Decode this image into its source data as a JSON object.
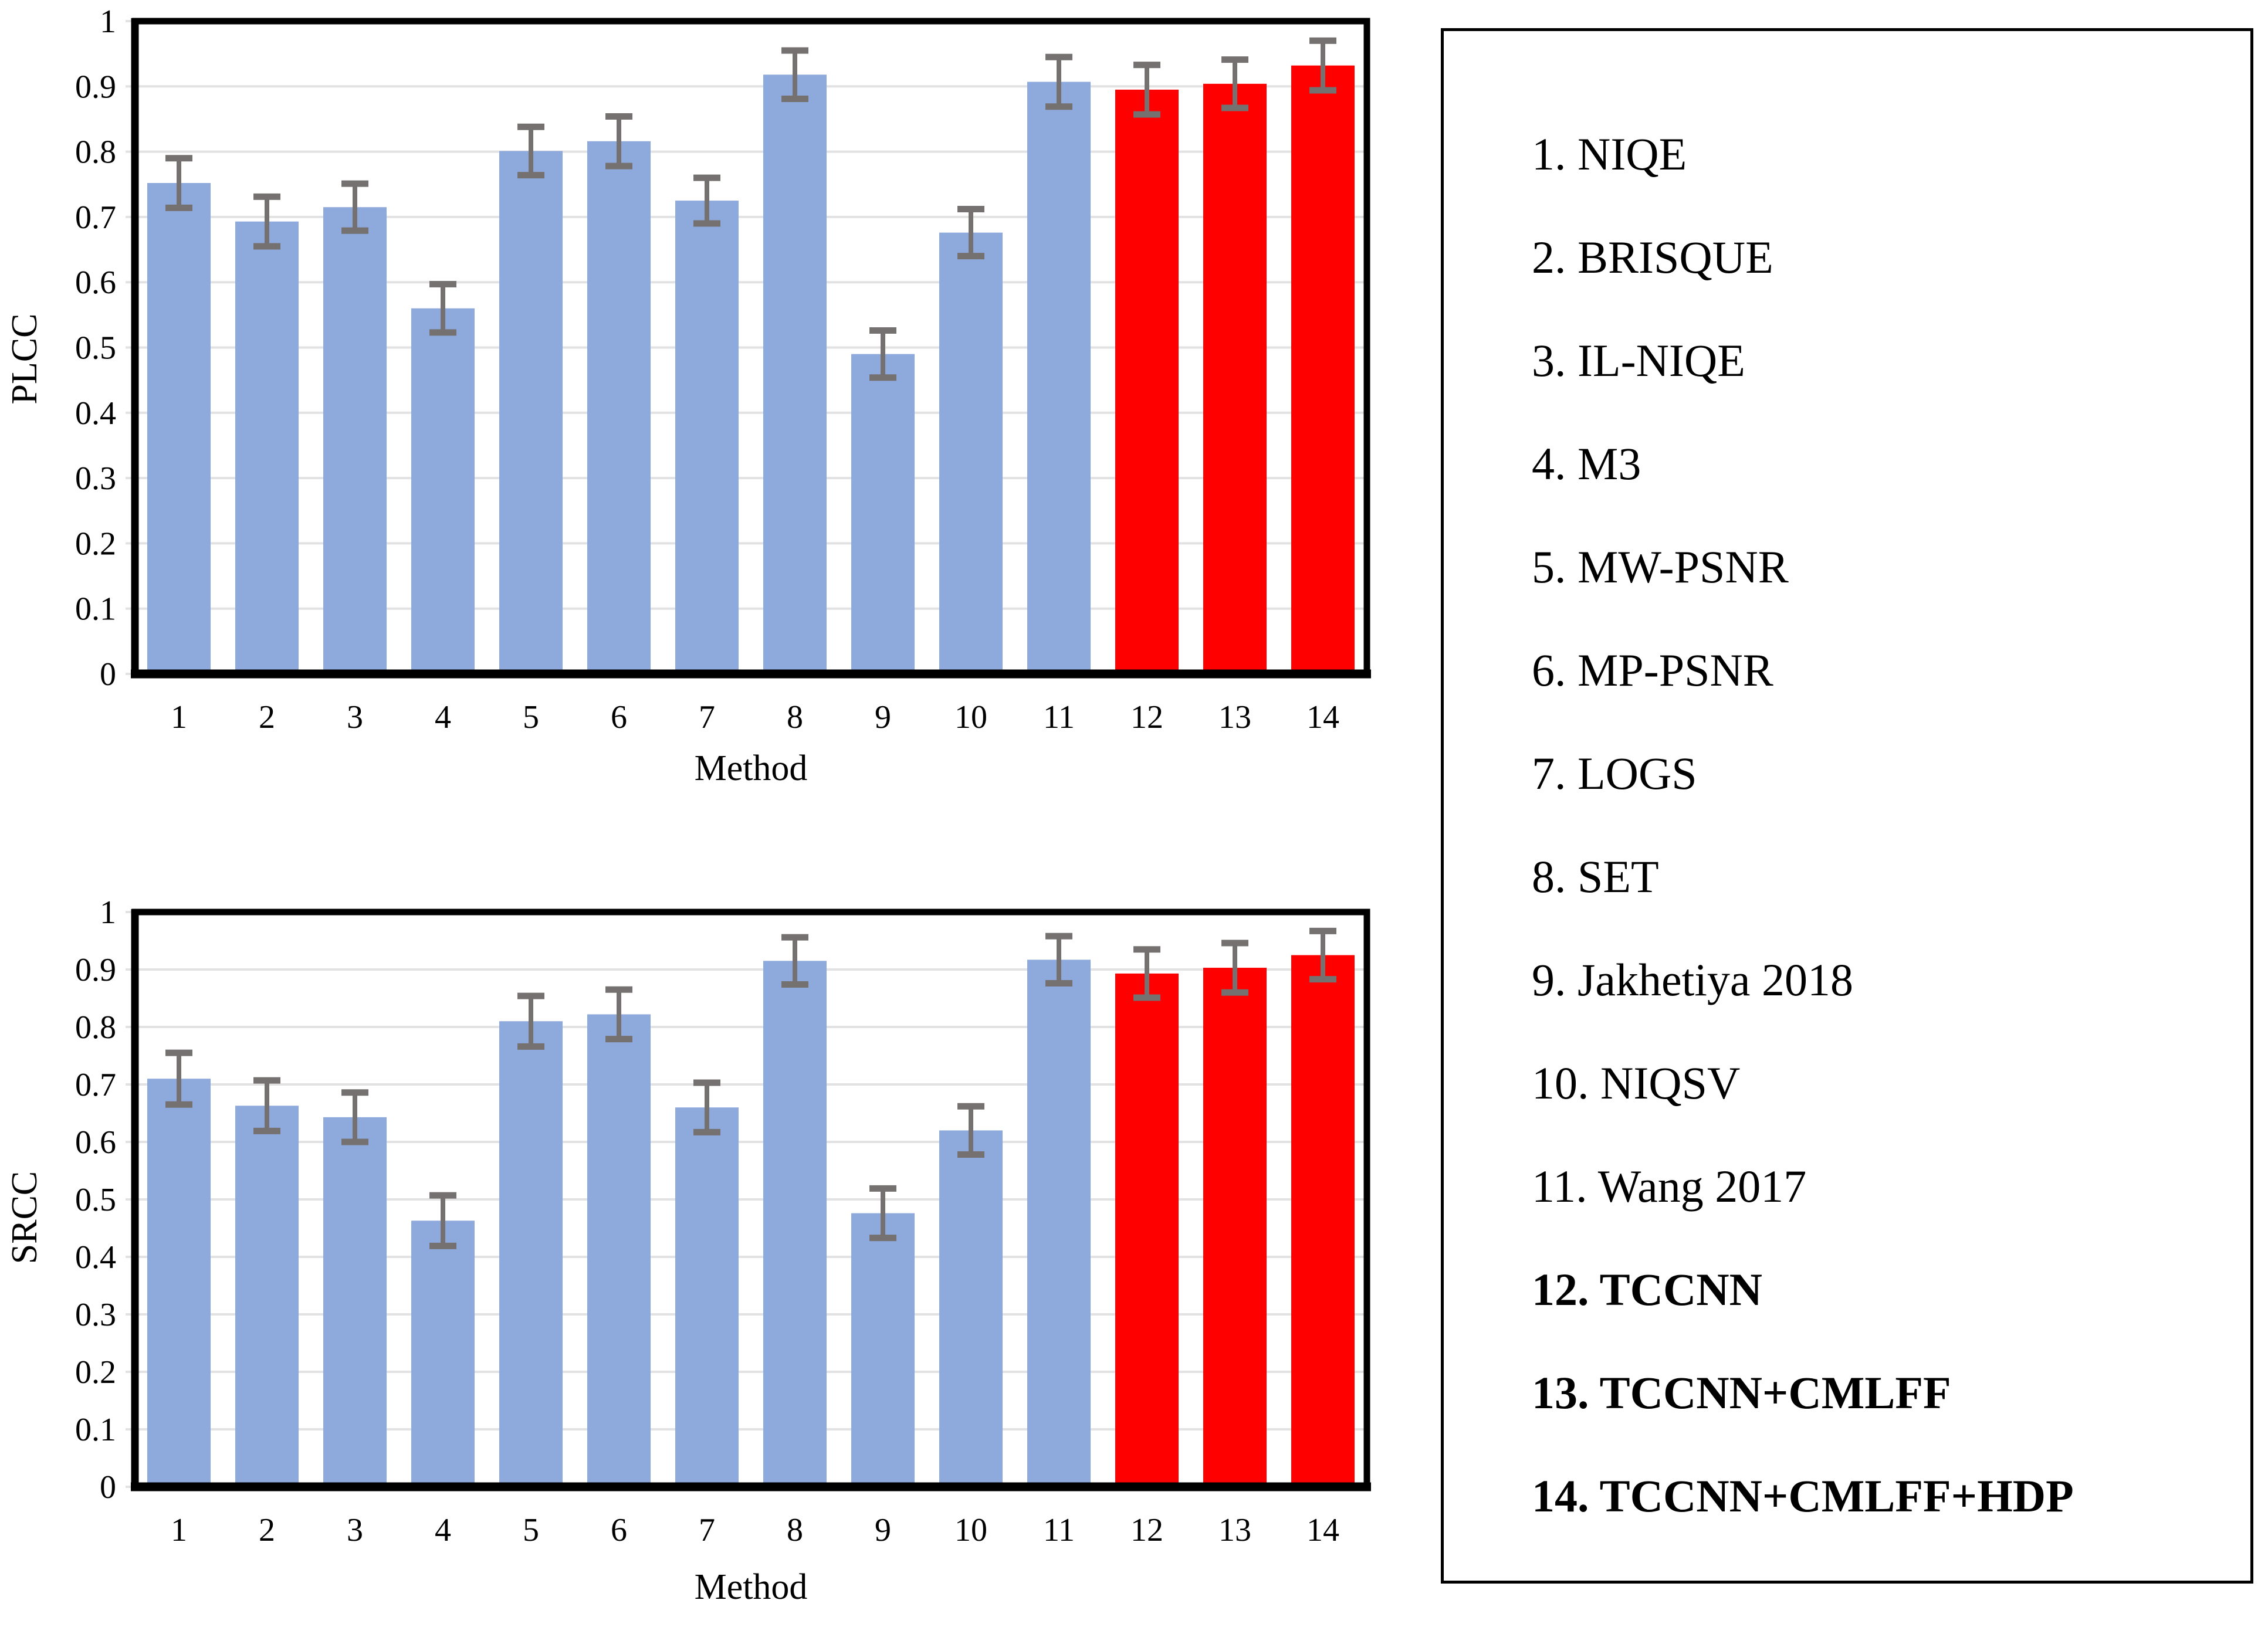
{
  "figure_background": "#FFFFFF",
  "chart_data": [
    {
      "id": "plcc",
      "type": "bar",
      "title": "",
      "xlabel": "Method",
      "ylabel": "PLCC",
      "categories": [
        "1",
        "2",
        "3",
        "4",
        "5",
        "6",
        "7",
        "8",
        "9",
        "10",
        "11",
        "12",
        "13",
        "14"
      ],
      "values": [
        0.752,
        0.693,
        0.715,
        0.56,
        0.801,
        0.816,
        0.725,
        0.918,
        0.49,
        0.676,
        0.907,
        0.895,
        0.904,
        0.932
      ],
      "errors": [
        0.038,
        0.038,
        0.036,
        0.037,
        0.037,
        0.038,
        0.035,
        0.037,
        0.036,
        0.036,
        0.038,
        0.038,
        0.037,
        0.038
      ],
      "ylim": [
        0,
        1
      ],
      "ytick_step": 0.1,
      "ytick_labels": [
        "0",
        "0.1",
        "0.2",
        "0.3",
        "0.4",
        "0.5",
        "0.6",
        "0.7",
        "0.8",
        "0.9",
        "1"
      ],
      "grid": true,
      "legend_position": "none",
      "bar_color": "#8EA9DB",
      "highlight_color": "#FF0000",
      "highlight_categories": [
        "12",
        "13",
        "14"
      ],
      "error_bar_color": "#757171",
      "gridline_color": "#E2E2E2",
      "axis_color": "#000000"
    },
    {
      "id": "srcc",
      "type": "bar",
      "title": "",
      "xlabel": "Method",
      "ylabel": "SRCC",
      "categories": [
        "1",
        "2",
        "3",
        "4",
        "5",
        "6",
        "7",
        "8",
        "9",
        "10",
        "11",
        "12",
        "13",
        "14"
      ],
      "values": [
        0.71,
        0.663,
        0.643,
        0.463,
        0.81,
        0.822,
        0.66,
        0.915,
        0.476,
        0.62,
        0.917,
        0.893,
        0.903,
        0.925
      ],
      "errors": [
        0.045,
        0.044,
        0.043,
        0.044,
        0.044,
        0.043,
        0.043,
        0.041,
        0.043,
        0.042,
        0.041,
        0.042,
        0.043,
        0.042
      ],
      "ylim": [
        0,
        1
      ],
      "ytick_step": 0.1,
      "ytick_labels": [
        "0",
        "0.1",
        "0.2",
        "0.3",
        "0.4",
        "0.5",
        "0.6",
        "0.7",
        "0.8",
        "0.9",
        "1"
      ],
      "grid": true,
      "legend_position": "none",
      "bar_color": "#8EA9DB",
      "highlight_color": "#FF0000",
      "highlight_categories": [
        "12",
        "13",
        "14"
      ],
      "error_bar_color": "#757171",
      "gridline_color": "#E2E2E2",
      "axis_color": "#000000"
    }
  ],
  "legend": {
    "border_color": "#000000",
    "items": [
      {
        "label": "1. NIQE",
        "bold": false
      },
      {
        "label": "2. BRISQUE",
        "bold": false
      },
      {
        "label": "3. IL-NIQE",
        "bold": false
      },
      {
        "label": "4. M3",
        "bold": false
      },
      {
        "label": "5. MW-PSNR",
        "bold": false
      },
      {
        "label": "6. MP-PSNR",
        "bold": false
      },
      {
        "label": "7. LOGS",
        "bold": false
      },
      {
        "label": "8. SET",
        "bold": false
      },
      {
        "label": "9. Jakhetiya 2018",
        "bold": false
      },
      {
        "label": "10. NIQSV",
        "bold": false
      },
      {
        "label": "11. Wang 2017",
        "bold": false
      },
      {
        "label": "12. TCCNN",
        "bold": true
      },
      {
        "label": "13. TCCNN+CMLFF",
        "bold": true
      },
      {
        "label": "14. TCCNN+CMLFF+HDP",
        "bold": true
      }
    ]
  }
}
